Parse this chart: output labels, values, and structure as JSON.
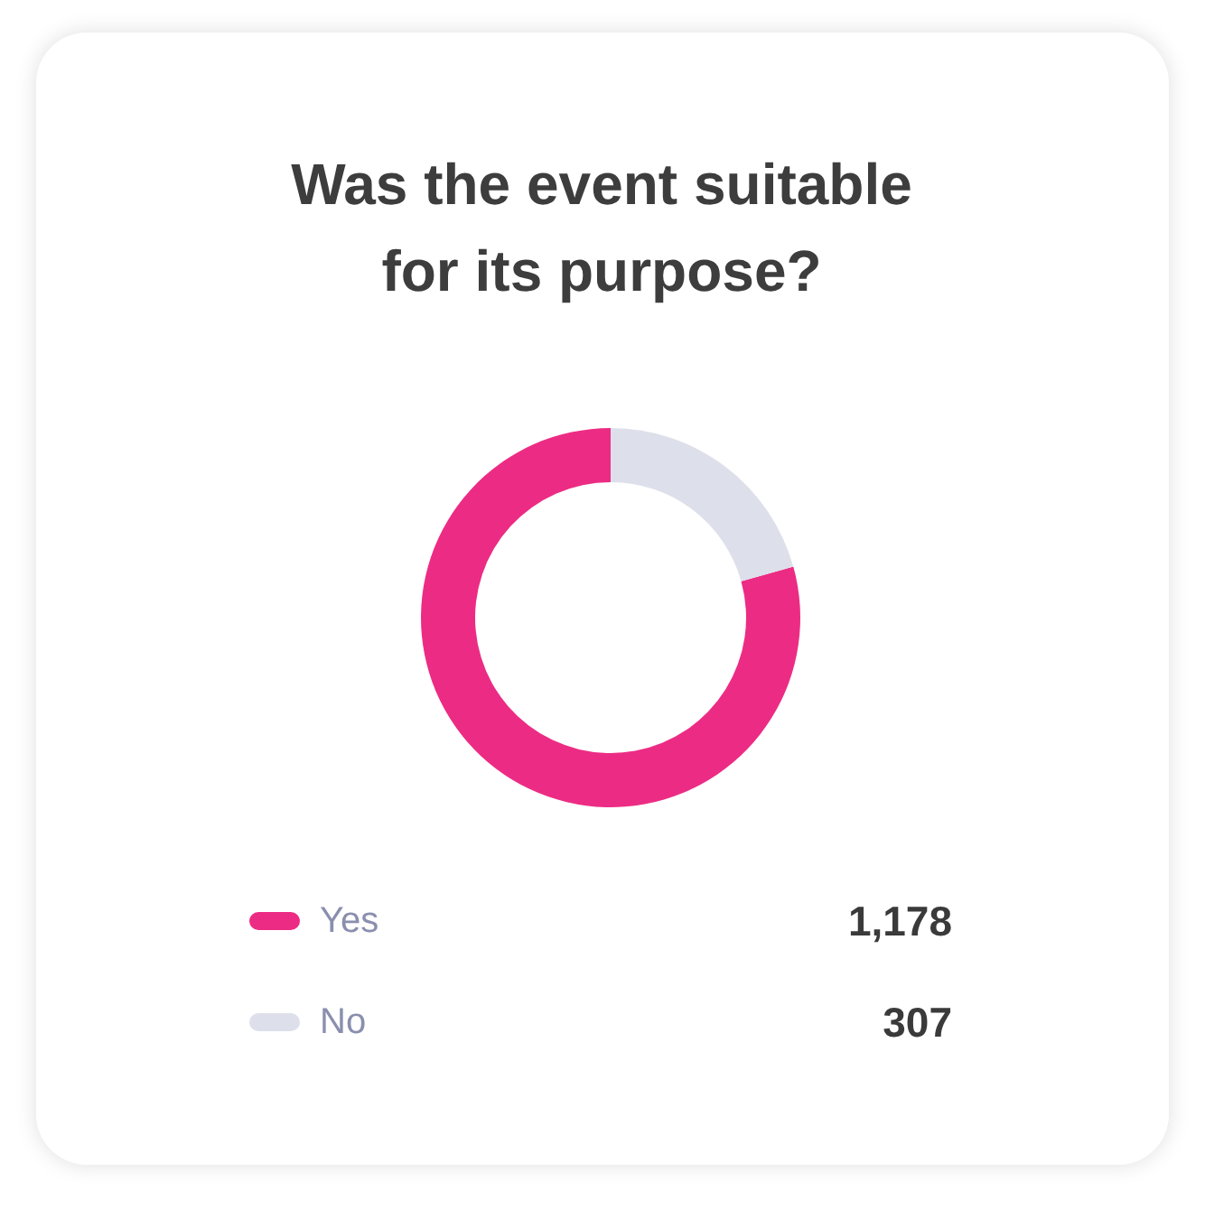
{
  "chart_data": {
    "type": "donut",
    "title": "Was the event suitable for its purpose?",
    "categories": [
      "Yes",
      "No"
    ],
    "values": [
      1178,
      307
    ],
    "colors": [
      "#ec2c84",
      "#dde0ea"
    ],
    "value_labels": [
      "1,178",
      "307"
    ],
    "legend": "bottom"
  }
}
